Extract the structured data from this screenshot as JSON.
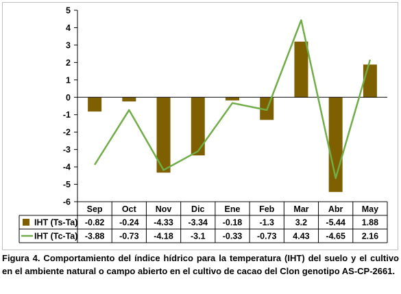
{
  "chart_data": {
    "type": "bar+line",
    "categories": [
      "Sep",
      "Oct",
      "Nov",
      "Dic",
      "Ene",
      "Feb",
      "Mar",
      "Abr",
      "May"
    ],
    "series": [
      {
        "name": "IHT (Ts-Ta)",
        "type": "bar",
        "color": "#7f6000",
        "values": [
          -0.82,
          -0.24,
          -4.33,
          -3.34,
          -0.18,
          -1.3,
          3.2,
          -5.44,
          1.88
        ],
        "labels": [
          "-0.82",
          "-0.24",
          "-4.33",
          "-3.34",
          "-0.18",
          "-1.3",
          "3.2",
          "-5.44",
          "1.88"
        ]
      },
      {
        "name": "IHT (Tc-Ta)",
        "type": "line",
        "color": "#70ad47",
        "values": [
          -3.88,
          -0.73,
          -4.18,
          -3.1,
          -0.33,
          -0.73,
          4.43,
          -4.65,
          2.16
        ],
        "labels": [
          "-3.88",
          "-0.73",
          "-4.18",
          "-3.1",
          "-0.33",
          "-0.73",
          "4.43",
          "-4.65",
          "2.16"
        ]
      }
    ],
    "ylim": [
      -6,
      5
    ],
    "yticks": [
      "5",
      "4",
      "3",
      "2",
      "1",
      "0",
      "-1",
      "-2",
      "-3",
      "-4",
      "-5",
      "-6"
    ],
    "data_table": true,
    "grid": false
  },
  "caption": {
    "lead": "Figura 4.",
    "text": " Comportamiento del índice hídrico para la temperatura (IHT) del suelo y el cultivo en el ambiente natural o campo abierto en el cultivo de cacao del Clon genotipo AS-CP-2661."
  }
}
